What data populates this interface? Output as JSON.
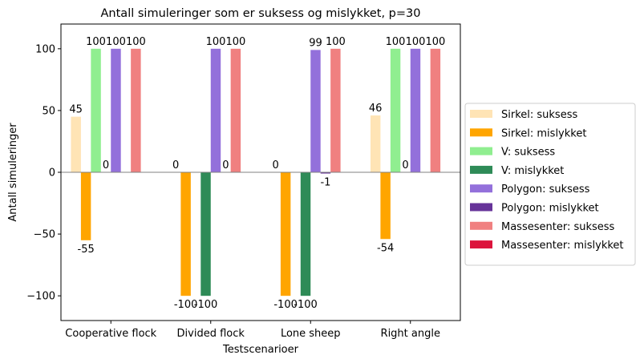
{
  "chart_data": {
    "type": "bar",
    "title": "Antall simuleringer som er suksess og mislykket, p=30",
    "xlabel": "Testscenarioer",
    "ylabel": "Antall simuleringer",
    "ylim": [
      -120,
      120
    ],
    "yticks": [
      -100,
      -50,
      0,
      50,
      100
    ],
    "ytick_labels": [
      "−100",
      "−50",
      "0",
      "50",
      "100"
    ],
    "categories": [
      "Cooperative flock",
      "Divided flock",
      "Lone sheep",
      "Right angle"
    ],
    "legend_position": "right",
    "series": [
      {
        "name": "Sirkel: suksess",
        "color": "#ffe4b5",
        "values": [
          45,
          0,
          0,
          46
        ],
        "labels": [
          "45",
          "0",
          "0",
          "46"
        ]
      },
      {
        "name": "Sirkel: mislykket",
        "color": "#ffa500",
        "values": [
          -55,
          -100,
          -100,
          -54
        ],
        "labels": [
          "-55",
          "-100",
          "-100",
          "-54"
        ]
      },
      {
        "name": "V: suksess",
        "color": "#90ee90",
        "values": [
          100,
          0,
          0,
          100
        ],
        "labels": [
          "100",
          "0",
          "0",
          "100"
        ]
      },
      {
        "name": "V: mislykket",
        "color": "#2e8b57",
        "values": [
          0,
          -100,
          -100,
          0
        ],
        "labels": [
          "0",
          "-100",
          "-100",
          "0"
        ]
      },
      {
        "name": "Polygon: suksess",
        "color": "#9370db",
        "values": [
          100,
          100,
          99,
          100
        ],
        "labels": [
          "100",
          "100",
          "99",
          "100"
        ]
      },
      {
        "name": "Polygon: mislykket",
        "color": "#663399",
        "values": [
          0,
          0,
          -1,
          0
        ],
        "labels": [
          "0",
          "0",
          "-1",
          "0"
        ]
      },
      {
        "name": "Massesenter: suksess",
        "color": "#f08080",
        "values": [
          100,
          100,
          100,
          100
        ],
        "labels": [
          "100",
          "100",
          "100",
          "100"
        ]
      },
      {
        "name": "Massesenter: mislykket",
        "color": "#dc143c",
        "values": [
          0,
          0,
          0,
          0
        ],
        "labels": [
          "0",
          "0",
          "0",
          "0"
        ]
      }
    ],
    "bar_label_positions": [
      [
        1,
        1,
        1,
        1
      ],
      [
        1,
        1,
        1,
        1
      ],
      [
        1,
        0,
        0,
        1
      ],
      [
        1,
        1,
        1,
        1
      ],
      [
        1,
        1,
        1,
        1
      ],
      [
        0,
        1,
        1,
        0
      ],
      [
        1,
        1,
        1,
        1
      ],
      [
        0,
        0,
        0,
        0
      ]
    ]
  }
}
